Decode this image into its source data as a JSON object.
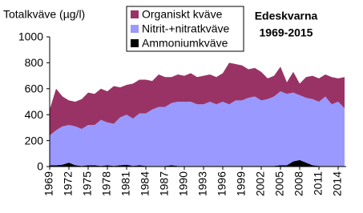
{
  "chart_data": {
    "type": "stacked-area",
    "title": "Totalkväve  (µg/l)",
    "annotation": [
      "Edeskvarna",
      "1969-2015"
    ],
    "x": [
      1969,
      1970,
      1971,
      1972,
      1973,
      1974,
      1975,
      1976,
      1977,
      1978,
      1979,
      1980,
      1981,
      1982,
      1983,
      1984,
      1985,
      1986,
      1987,
      1988,
      1989,
      1990,
      1991,
      1992,
      1993,
      1994,
      1995,
      1996,
      1997,
      1998,
      1999,
      2000,
      2001,
      2002,
      2003,
      2004,
      2005,
      2006,
      2007,
      2008,
      2009,
      2010,
      2011,
      2012,
      2013,
      2014,
      2015
    ],
    "series": [
      {
        "name": "Ammoniumkväve",
        "color": "#000000",
        "values": [
          10,
          10,
          15,
          30,
          10,
          5,
          10,
          10,
          5,
          10,
          5,
          10,
          15,
          5,
          10,
          5,
          5,
          5,
          5,
          10,
          5,
          5,
          5,
          5,
          5,
          5,
          5,
          5,
          5,
          5,
          5,
          5,
          5,
          5,
          5,
          5,
          10,
          10,
          40,
          50,
          30,
          10,
          5,
          5,
          5,
          5,
          5
        ]
      },
      {
        "name": "Nitrit-+nitratkväve",
        "color": "#9999ff",
        "values": [
          230,
          270,
          295,
          290,
          300,
          285,
          310,
          310,
          355,
          330,
          325,
          370,
          385,
          365,
          400,
          405,
          435,
          455,
          455,
          480,
          495,
          495,
          495,
          475,
          475,
          495,
          475,
          495,
          475,
          505,
          505,
          525,
          535,
          505,
          515,
          535,
          570,
          550,
          530,
          500,
          500,
          510,
          495,
          535,
          475,
          495,
          445
        ]
      },
      {
        "name": "Organiskt kväve",
        "color": "#993366",
        "values": [
          200,
          320,
          230,
          190,
          190,
          230,
          250,
          240,
          240,
          240,
          290,
          230,
          230,
          270,
          260,
          260,
          220,
          250,
          230,
          200,
          210,
          200,
          220,
          210,
          220,
          210,
          210,
          220,
          320,
          280,
          270,
          220,
          220,
          220,
          160,
          160,
          190,
          90,
          160,
          90,
          160,
          180,
          180,
          170,
          210,
          180,
          240
        ]
      }
    ],
    "xlim": [
      1969,
      2015
    ],
    "xticks": [
      1969,
      1972,
      1975,
      1978,
      1981,
      1984,
      1987,
      1990,
      1993,
      1996,
      1999,
      2002,
      2005,
      2008,
      2011,
      2014
    ],
    "ylim": [
      0,
      1000
    ],
    "yticks": [
      0,
      200,
      400,
      600,
      800,
      1000
    ],
    "grid": false,
    "legend": "top"
  }
}
